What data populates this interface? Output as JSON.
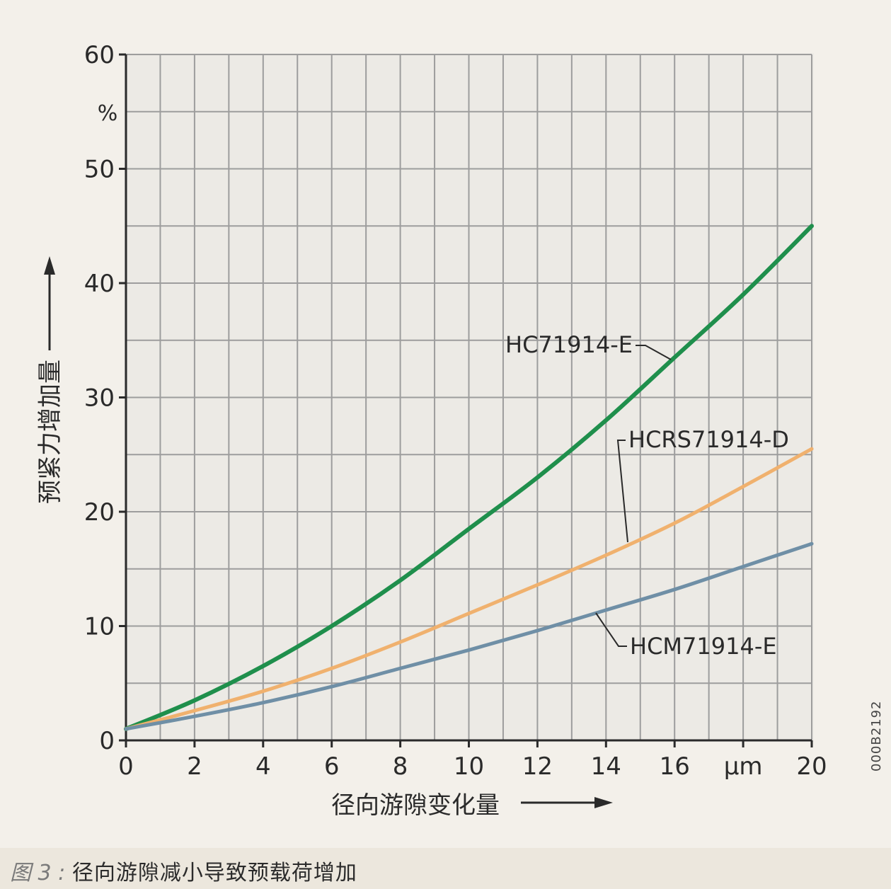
{
  "chart_data": {
    "type": "line",
    "x": [
      0,
      2,
      4,
      6,
      8,
      10,
      12,
      14,
      16,
      18,
      20
    ],
    "xlim": [
      0,
      20
    ],
    "ylim": [
      0,
      60
    ],
    "x_ticks": [
      "0",
      "2",
      "4",
      "6",
      "8",
      "10",
      "12",
      "14",
      "16",
      "μm",
      "20"
    ],
    "y_ticks": [
      "0",
      "10",
      "20",
      "30",
      "40",
      "50",
      "60"
    ],
    "y_unit": "%",
    "xlabel": "径向游隙变化量",
    "ylabel": "预紧力增加量",
    "grid": true,
    "series": [
      {
        "name": "HC71914-E",
        "color": "#1f8f4c",
        "values": [
          1,
          3.5,
          6.5,
          10,
          14,
          18.5,
          23,
          28,
          33.5,
          39,
          45
        ]
      },
      {
        "name": "HCRS71914-D",
        "color": "#f0b16e",
        "values": [
          1,
          2.6,
          4.3,
          6.3,
          8.6,
          11.1,
          13.6,
          16.2,
          19.0,
          22.2,
          25.5
        ]
      },
      {
        "name": "HCM71914-E",
        "color": "#6f8fa6",
        "values": [
          1,
          2.1,
          3.3,
          4.7,
          6.3,
          7.9,
          9.6,
          11.4,
          13.2,
          15.2,
          17.2
        ]
      }
    ]
  },
  "caption": {
    "figure": "图 3 :",
    "text": "径向游隙减小导致预载荷增加"
  },
  "figure_id": "000B2192"
}
